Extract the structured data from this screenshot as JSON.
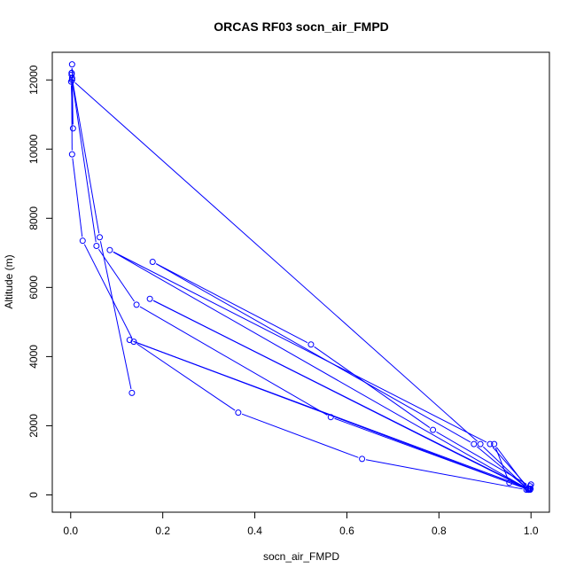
{
  "chart_data": {
    "type": "line",
    "title": "ORCAS RF03 socn_air_FMPD",
    "xlabel": "socn_air_FMPD",
    "ylabel": "Altitude (m)",
    "xlim": [
      -0.04,
      1.04
    ],
    "ylim": [
      -500,
      12800
    ],
    "x_ticks": [
      0.0,
      0.2,
      0.4,
      0.6,
      0.8,
      1.0
    ],
    "x_tick_labels": [
      "0.0",
      "0.2",
      "0.4",
      "0.6",
      "0.8",
      "1.0"
    ],
    "y_ticks": [
      0,
      2000,
      4000,
      6000,
      8000,
      10000,
      12000
    ],
    "y_tick_labels": [
      "0",
      "2000",
      "4000",
      "6000",
      "8000",
      "10000",
      "12000"
    ],
    "color": "#0000ff",
    "grid": false,
    "legend": "none",
    "series": [
      {
        "x": [
          0.133,
          0.063,
          0.003,
          0.002,
          0.002,
          0.003,
          0.005,
          0.001,
          0.002,
          0.003,
          0.026,
          0.137,
          0.364,
          0.633,
          0.99,
          0.999,
          0.953,
          0.92,
          0.994,
          0.172,
          0.998,
          0.911,
          0.085,
          0.993,
          0.89,
          0.003,
          0.056,
          0.143,
          0.565,
          0.995,
          0.876,
          0.178,
          0.522,
          0.787,
          0.998,
          0.996,
          0.128,
          0.995,
          1.0
        ],
        "y": [
          2950,
          7450,
          12050,
          12200,
          12150,
          12450,
          10600,
          11950,
          12200,
          9850,
          7350,
          4430,
          2380,
          1040,
          150,
          180,
          350,
          1470,
          160,
          5670,
          150,
          1470,
          7080,
          170,
          1470,
          12000,
          7200,
          5500,
          2250,
          150,
          1470,
          6740,
          4350,
          1880,
          250,
          180,
          4480,
          150,
          300
        ]
      }
    ]
  }
}
